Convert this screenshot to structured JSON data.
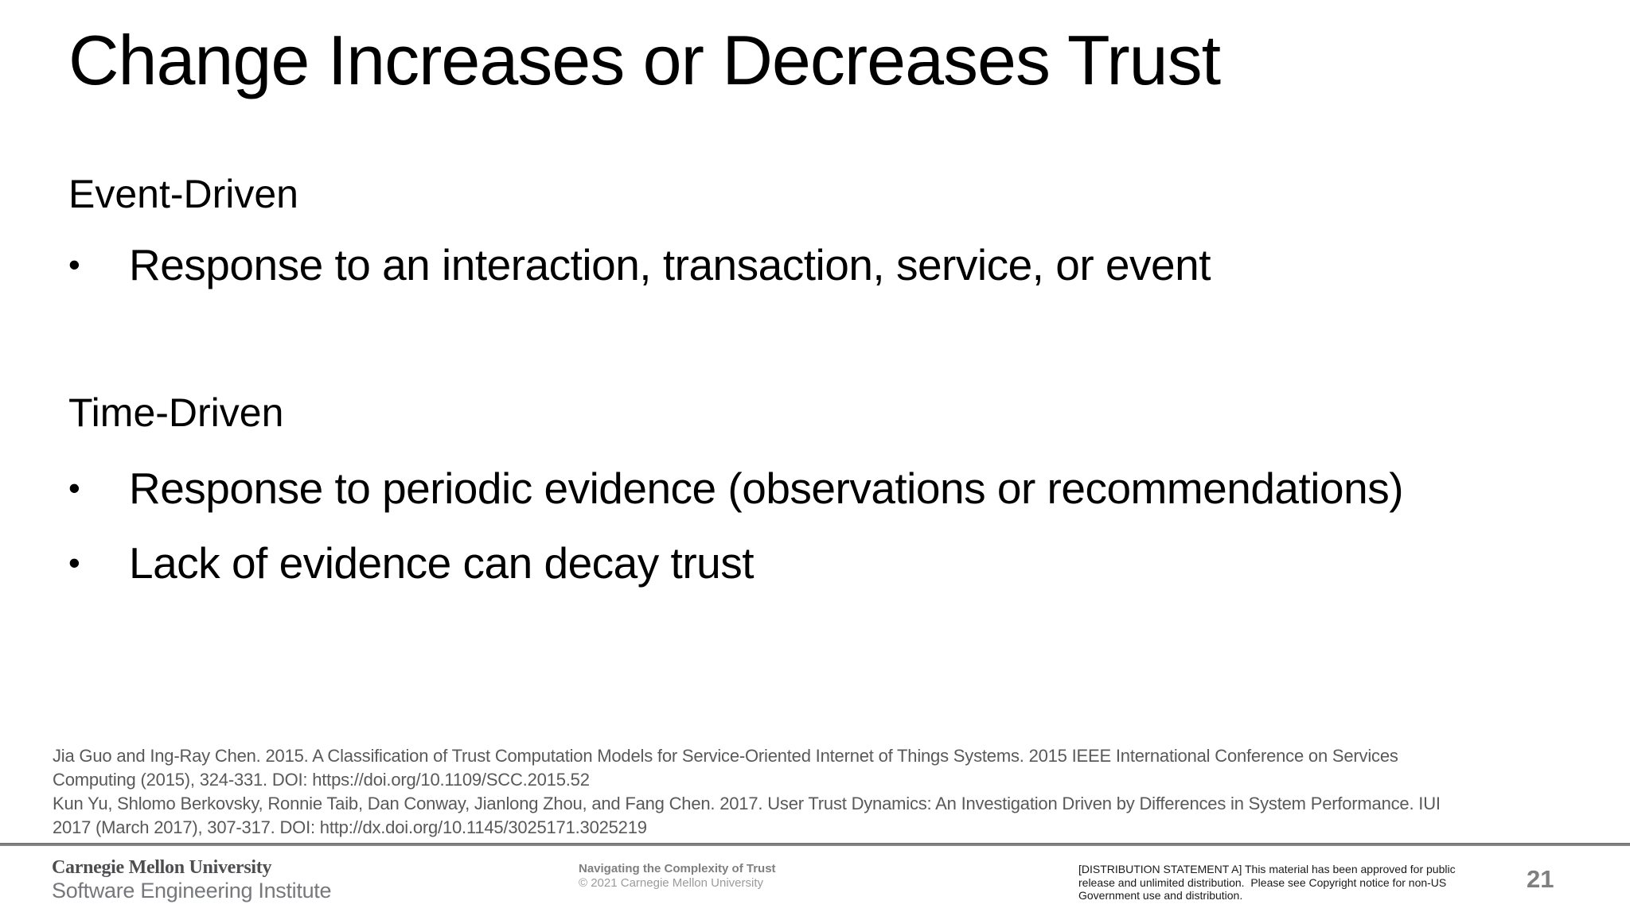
{
  "slide": {
    "title": "Change Increases or Decreases Trust",
    "bullet_glyph": "•",
    "sections": [
      {
        "heading": "Event-Driven",
        "bullets": [
          "Response to an interaction, transaction, service, or event"
        ]
      },
      {
        "heading": "Time-Driven",
        "bullets": [
          "Response to periodic evidence (observations or recommendations)",
          "Lack of evidence can decay trust"
        ]
      }
    ],
    "references": [
      {
        "lines": [
          "Jia Guo and Ing-Ray Chen. 2015. A Classification of Trust Computation Models for Service-Oriented Internet of Things Systems. 2015 IEEE International Conference on Services",
          "Computing (2015), 324-331. DOI: https://doi.org/10.1109/SCC.2015.52"
        ]
      },
      {
        "lines": [
          "Kun Yu, Shlomo Berkovsky, Ronnie Taib, Dan Conway, Jianlong Zhou, and Fang Chen. 2017. User Trust Dynamics: An Investigation Driven by Differences in System Performance. IUI",
          "2017 (March 2017), 307-317. DOI: http://dx.doi.org/10.1145/3025171.3025219"
        ]
      }
    ]
  },
  "footer": {
    "org_name": "Carnegie Mellon University",
    "org_unit": "Software Engineering Institute",
    "deck_title": "Navigating the Complexity of Trust",
    "copyright": "© 2021 Carnegie Mellon University",
    "distribution_lines": [
      "[DISTRIBUTION STATEMENT A] This material has been approved for public",
      "release and unlimited distribution.  Please see Copyright notice for non-US",
      "Government use and distribution."
    ],
    "page_number": "21"
  },
  "colors": {
    "text": "#000000",
    "reference_gray": "#595959",
    "footer_gray": "#7f7f7f",
    "divider_gray": "#808080"
  }
}
